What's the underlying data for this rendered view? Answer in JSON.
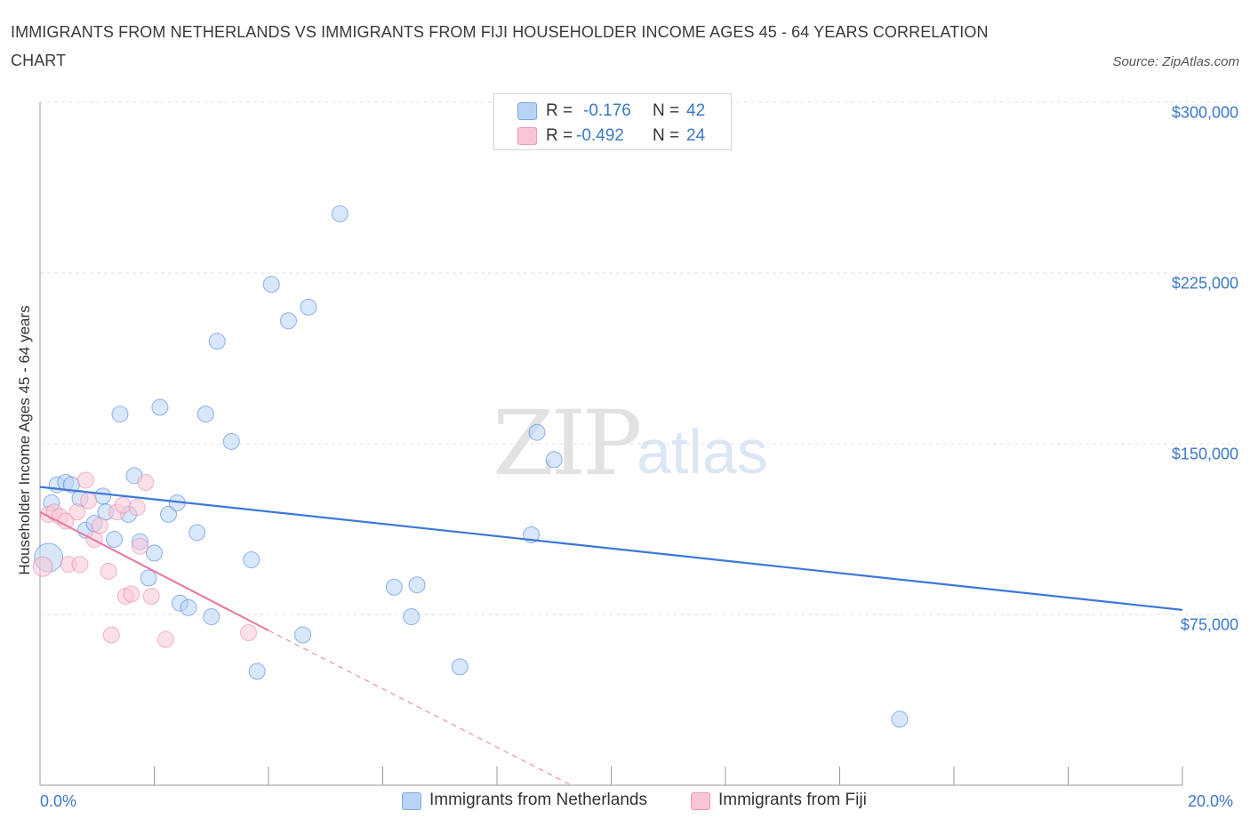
{
  "title": "IMMIGRANTS FROM NETHERLANDS VS IMMIGRANTS FROM FIJI HOUSEHOLDER INCOME AGES 45 - 64 YEARS CORRELATION CHART",
  "source": "Source: ZipAtlas.com",
  "watermark": {
    "zip": "ZIP",
    "atlas": "atlas"
  },
  "colors": {
    "blue": "#3c78d8",
    "pink": "#e87da2",
    "blue_fill": "#b8d3f5",
    "pink_fill": "#f9c6d6",
    "tick_text": "#3c78c8"
  },
  "legend_top": {
    "series1": {
      "r_label": "R =",
      "r_value": "-0.176",
      "n_label": "N =",
      "n_value": "42"
    },
    "series2": {
      "r_label": "R =",
      "r_value": "-0.492",
      "n_label": "N =",
      "n_value": "24"
    }
  },
  "legend_bottom": {
    "series1": "Immigrants from Netherlands",
    "series2": "Immigrants from Fiji"
  },
  "chart_data": {
    "type": "scatter",
    "title": "IMMIGRANTS FROM NETHERLANDS VS IMMIGRANTS FROM FIJI HOUSEHOLDER INCOME AGES 45 - 64 YEARS CORRELATION CHART",
    "xlabel": "",
    "ylabel": "Householder Income Ages 45 - 64 years",
    "xlim": [
      0,
      20
    ],
    "ylim": [
      0,
      300000
    ],
    "x_tick_labels": [
      "0.0%",
      "20.0%"
    ],
    "y_ticks": [
      {
        "value": 75000,
        "label": "$75,000"
      },
      {
        "value": 150000,
        "label": "$150,000"
      },
      {
        "value": 225000,
        "label": "$225,000"
      },
      {
        "value": 300000,
        "label": "$300,000"
      }
    ],
    "series": [
      {
        "name": "Immigrants from Netherlands",
        "color": "#3c78d8",
        "points": [
          [
            0.15,
            100000,
            16
          ],
          [
            0.2,
            124000,
            9
          ],
          [
            0.3,
            132000,
            9
          ],
          [
            0.45,
            133000,
            9
          ],
          [
            0.55,
            132000,
            9
          ],
          [
            0.7,
            126000,
            9
          ],
          [
            0.8,
            112000,
            9
          ],
          [
            0.95,
            115000,
            9
          ],
          [
            1.1,
            127000,
            9
          ],
          [
            1.15,
            120000,
            9
          ],
          [
            1.3,
            108000,
            9
          ],
          [
            1.4,
            163000,
            9
          ],
          [
            1.55,
            119000,
            9
          ],
          [
            1.65,
            136000,
            9
          ],
          [
            1.75,
            107000,
            9
          ],
          [
            1.9,
            91000,
            9
          ],
          [
            2.0,
            102000,
            9
          ],
          [
            2.1,
            166000,
            9
          ],
          [
            2.25,
            119000,
            9
          ],
          [
            2.4,
            124000,
            9
          ],
          [
            2.45,
            80000,
            9
          ],
          [
            2.6,
            78000,
            9
          ],
          [
            2.75,
            111000,
            9
          ],
          [
            2.9,
            163000,
            9
          ],
          [
            3.0,
            74000,
            9
          ],
          [
            3.1,
            195000,
            9
          ],
          [
            3.35,
            151000,
            9
          ],
          [
            3.7,
            99000,
            9
          ],
          [
            3.8,
            50000,
            9
          ],
          [
            4.05,
            220000,
            9
          ],
          [
            4.35,
            204000,
            9
          ],
          [
            4.6,
            66000,
            9
          ],
          [
            4.7,
            210000,
            9
          ],
          [
            5.25,
            251000,
            9
          ],
          [
            6.2,
            87000,
            9
          ],
          [
            6.5,
            74000,
            9
          ],
          [
            6.6,
            88000,
            9
          ],
          [
            7.35,
            52000,
            9
          ],
          [
            8.6,
            110000,
            9
          ],
          [
            8.7,
            155000,
            9
          ],
          [
            9.0,
            143000,
            9
          ],
          [
            15.05,
            29000,
            9
          ]
        ],
        "trend": {
          "x": [
            0,
            20
          ],
          "y": [
            131000,
            77000
          ],
          "style": "solid"
        }
      },
      {
        "name": "Immigrants from Fiji",
        "color": "#e87da2",
        "points": [
          [
            0.05,
            96000,
            11
          ],
          [
            0.15,
            119000,
            9
          ],
          [
            0.25,
            120000,
            9
          ],
          [
            0.35,
            118000,
            9
          ],
          [
            0.45,
            116000,
            9
          ],
          [
            0.5,
            97000,
            9
          ],
          [
            0.65,
            120000,
            9
          ],
          [
            0.7,
            97000,
            9
          ],
          [
            0.8,
            134000,
            9
          ],
          [
            0.85,
            125000,
            9
          ],
          [
            0.95,
            108000,
            9
          ],
          [
            1.05,
            114000,
            9
          ],
          [
            1.2,
            94000,
            9
          ],
          [
            1.25,
            66000,
            9
          ],
          [
            1.35,
            120000,
            9
          ],
          [
            1.45,
            123000,
            9
          ],
          [
            1.5,
            83000,
            9
          ],
          [
            1.6,
            84000,
            9
          ],
          [
            1.7,
            122000,
            9
          ],
          [
            1.75,
            105000,
            9
          ],
          [
            1.85,
            133000,
            9
          ],
          [
            1.95,
            83000,
            9
          ],
          [
            2.2,
            64000,
            9
          ],
          [
            3.65,
            67000,
            9
          ]
        ],
        "trend": {
          "x": [
            0,
            4.0
          ],
          "y": [
            120000,
            68000
          ],
          "style": "solid"
        },
        "trend_extension": {
          "x": [
            4.0,
            9.3
          ],
          "y": [
            68000,
            0
          ],
          "style": "dashed"
        }
      }
    ]
  }
}
